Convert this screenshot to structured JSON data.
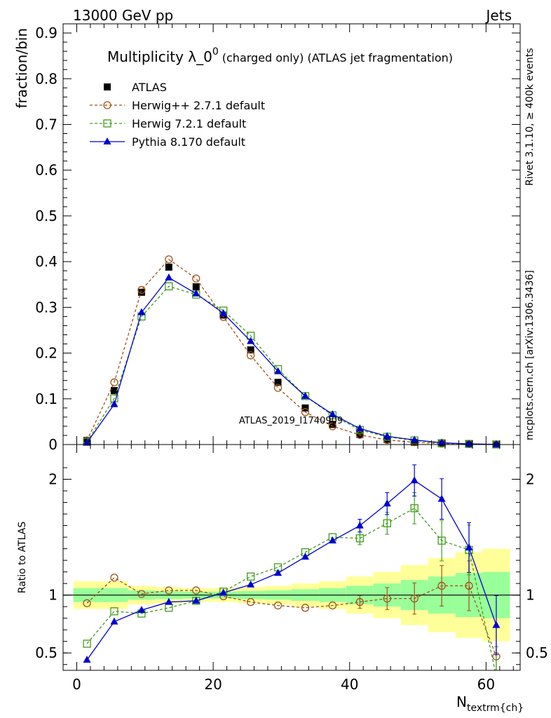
{
  "header": {
    "left": "13000 GeV pp",
    "right": "Jets"
  },
  "side_labels": {
    "top": "Rivet 3.1.10, ≥ 400k events",
    "bottom": "mcplots.cern.ch [arXiv:1306.3436]"
  },
  "watermark": "ATLAS_2019_I1740909",
  "title": {
    "main": "Multiplicity λ_0",
    "sup": "0",
    "sub": "(charged only) (ATLAS jet fragmentation)"
  },
  "chart_data": [
    {
      "type": "scatter",
      "panel": "main",
      "ylabel": "fraction/bin",
      "xlim": [
        -2,
        65
      ],
      "ylim": [
        0,
        0.92
      ],
      "yticks": [
        "0",
        "0.1",
        "0.2",
        "0.3",
        "0.4",
        "0.5",
        "0.6",
        "0.7",
        "0.8",
        "0.9"
      ],
      "x": [
        1.5,
        5.5,
        9.5,
        13.5,
        17.5,
        21.5,
        25.5,
        29.5,
        33.5,
        37.5,
        41.5,
        45.5,
        49.5,
        53.5,
        57.5,
        61.5
      ],
      "series": [
        {
          "name": "ATLAS",
          "style": "data",
          "color": "#000000",
          "values": [
            0.009,
            0.118,
            0.333,
            0.388,
            0.345,
            0.283,
            0.207,
            0.136,
            0.08,
            0.044,
            0.022,
            0.011,
            0.005,
            0.002,
            0.001,
            0.0005
          ]
        },
        {
          "name": "Herwig++ 2.7.1 default",
          "style": "circle",
          "color": "#a0521a",
          "values": [
            0.009,
            0.136,
            0.338,
            0.405,
            0.363,
            0.279,
            0.195,
            0.124,
            0.071,
            0.04,
            0.021,
            0.01,
            0.005,
            0.002,
            0.001,
            0.0003
          ]
        },
        {
          "name": "Herwig 7.2.1 default",
          "style": "square",
          "color": "#3f9c1a",
          "values": [
            0.006,
            0.101,
            0.28,
            0.346,
            0.328,
            0.293,
            0.238,
            0.165,
            0.106,
            0.064,
            0.032,
            0.017,
            0.009,
            0.003,
            0.0014,
            0.0002
          ]
        },
        {
          "name": "Pythia 8.170 default",
          "style": "triangle",
          "color": "#0000d0",
          "values": [
            0.004,
            0.088,
            0.289,
            0.365,
            0.33,
            0.287,
            0.226,
            0.16,
            0.106,
            0.066,
            0.035,
            0.018,
            0.01,
            0.004,
            0.0014,
            0.0004
          ]
        }
      ]
    },
    {
      "type": "scatter",
      "panel": "ratio",
      "ylabel": "Ratio to ATLAS",
      "xlabel": "N",
      "xlabel_sub": "textrm{ch}",
      "xlim": [
        -2,
        65
      ],
      "ylim": [
        0.35,
        2.3
      ],
      "xticks": [
        "0",
        "20",
        "40",
        "60"
      ],
      "yticks": [
        "0.5",
        "1",
        "2"
      ],
      "x": [
        1.5,
        5.5,
        9.5,
        13.5,
        17.5,
        21.5,
        25.5,
        29.5,
        33.5,
        37.5,
        41.5,
        45.5,
        49.5,
        53.5,
        57.5,
        61.5
      ],
      "bands": {
        "green_half": [
          0.06,
          0.06,
          0.04,
          0.035,
          0.03,
          0.03,
          0.035,
          0.04,
          0.05,
          0.06,
          0.08,
          0.1,
          0.13,
          0.16,
          0.19,
          0.2
        ],
        "yellow_half": [
          0.12,
          0.12,
          0.08,
          0.07,
          0.06,
          0.06,
          0.07,
          0.08,
          0.1,
          0.12,
          0.16,
          0.2,
          0.26,
          0.32,
          0.37,
          0.4
        ]
      },
      "series": [
        {
          "name": "Herwig++ 2.7.1 default",
          "style": "circle",
          "color": "#a0521a",
          "values": [
            0.93,
            1.15,
            1.01,
            1.04,
            1.04,
            0.99,
            0.94,
            0.91,
            0.89,
            0.91,
            0.94,
            0.97,
            0.97,
            1.08,
            1.08,
            0.47
          ]
        },
        {
          "name": "Herwig 7.2.1 default",
          "style": "square",
          "color": "#3f9c1a",
          "values": [
            0.58,
            0.86,
            0.84,
            0.89,
            0.95,
            1.03,
            1.16,
            1.24,
            1.37,
            1.5,
            1.49,
            1.62,
            1.75,
            1.47,
            1.39,
            0.3
          ]
        },
        {
          "name": "Pythia 8.170 default",
          "style": "triangle",
          "color": "#0000d0",
          "values": [
            0.44,
            0.77,
            0.87,
            0.94,
            0.95,
            1.02,
            1.09,
            1.19,
            1.33,
            1.47,
            1.6,
            1.79,
            1.99,
            1.83,
            1.41,
            0.74
          ]
        }
      ]
    }
  ]
}
